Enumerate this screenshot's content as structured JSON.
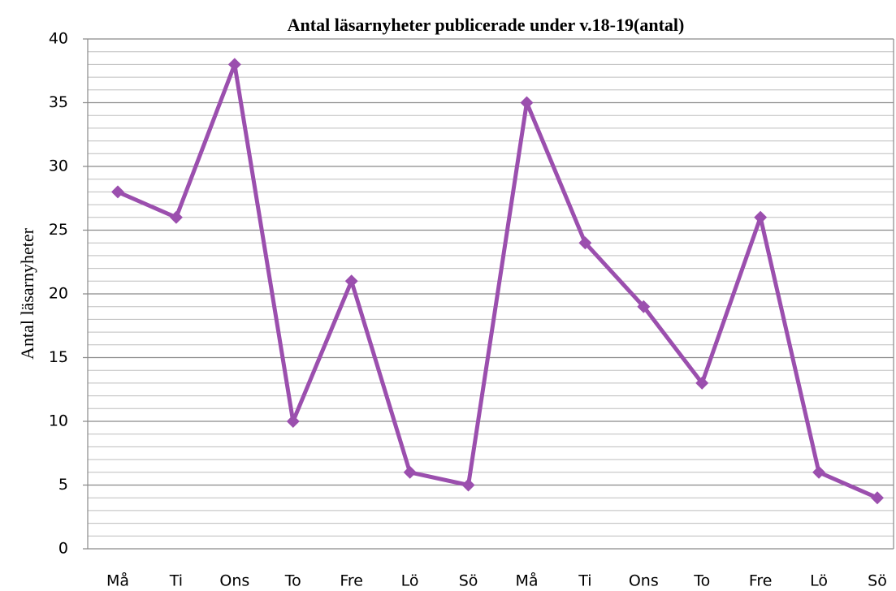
{
  "chart_data": {
    "type": "line",
    "title": "Antal läsarnyheter publicerade under v.18-19(antal)",
    "y_label": "Antal läsarnyheter",
    "categories": [
      "Må",
      "Ti",
      "Ons",
      "To",
      "Fre",
      "Lö",
      "Sö",
      "Må",
      "Ti",
      "Ons",
      "To",
      "Fre",
      "Lö",
      "Sö"
    ],
    "series": [
      {
        "name": "Antal läsarnyheter",
        "color": "#9b4fae",
        "values": [
          28,
          26,
          38,
          10,
          21,
          6,
          5,
          35,
          24,
          19,
          13,
          26,
          6,
          4
        ]
      }
    ],
    "ylim": [
      0,
      40
    ],
    "yticks": [
      0,
      5,
      10,
      15,
      20,
      25,
      30,
      35,
      40
    ],
    "minor_yticks": [
      1,
      2,
      3,
      4,
      6,
      7,
      8,
      9,
      11,
      12,
      13,
      14,
      16,
      17,
      18,
      19,
      21,
      22,
      23,
      24,
      26,
      27,
      28,
      29,
      31,
      32,
      33,
      34,
      36,
      37,
      38,
      39
    ],
    "grid": true,
    "legend": false,
    "marker": "diamond"
  }
}
